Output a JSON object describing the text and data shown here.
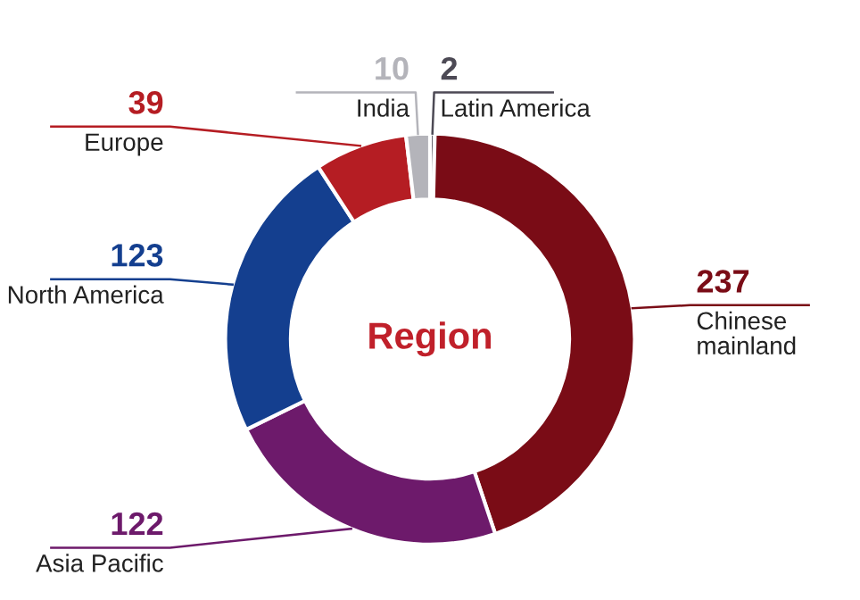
{
  "chart_data": {
    "type": "donut",
    "title": "Region",
    "categories": [
      "Latin America",
      "Chinese mainland",
      "Asia Pacific",
      "North America",
      "Europe",
      "India"
    ],
    "values": [
      2,
      237,
      122,
      123,
      39,
      10
    ],
    "colors": [
      "#4d4a55",
      "#7a0c16",
      "#6d1a6b",
      "#143f8f",
      "#b51d23",
      "#b4b4ba"
    ],
    "data_labels": true
  }
}
